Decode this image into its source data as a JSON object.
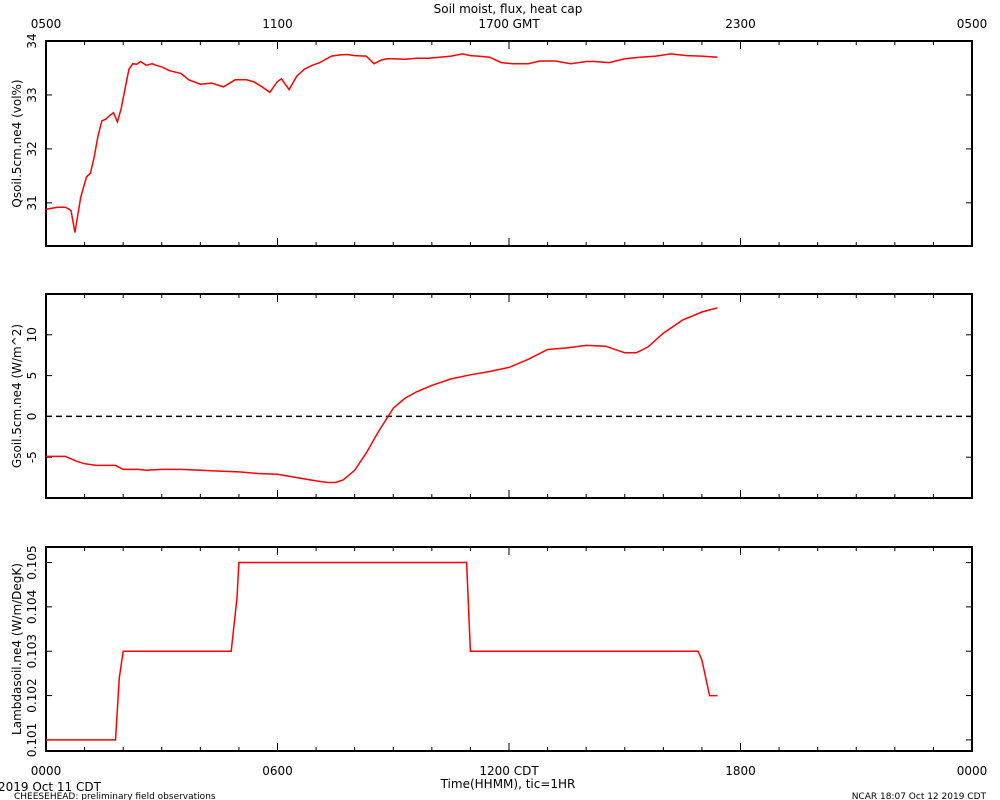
{
  "top_axis": {
    "title": "Soil moist, flux, heat cap",
    "tick_labels": [
      "0500",
      "1100",
      "1700 GMT",
      "2300",
      "0500"
    ]
  },
  "bottom_axis": {
    "tick_labels": [
      "0000",
      "0600",
      "1200 CDT",
      "1800",
      "0000"
    ],
    "title": "Time(HHMM), tic=1HR",
    "range_hours": [
      0,
      24
    ]
  },
  "footer": {
    "date_label": "2019 Oct 11 CDT",
    "left_note": "CHEESEHEAD: preliminary field observations",
    "right_note": "NCAR 18:07 Oct 12 2019 CDT"
  },
  "colors": {
    "series": "#ff0000",
    "axes": "#000000",
    "background": "#ffffff"
  },
  "chart_data": [
    {
      "type": "line",
      "ylabel": "Qsoil.5cm.ne4 (vol%)",
      "ylim": [
        30.2,
        34.0
      ],
      "ytick_values": [
        31,
        32,
        33,
        34
      ],
      "ytick_labels": [
        "31",
        "32",
        "33",
        "34"
      ],
      "xlim": [
        0,
        24
      ],
      "x": [
        0.0,
        0.3,
        0.5,
        0.6,
        0.65,
        0.75,
        0.9,
        1.05,
        1.15,
        1.25,
        1.35,
        1.45,
        1.55,
        1.65,
        1.75,
        1.85,
        1.95,
        2.1,
        2.15,
        2.25,
        2.35,
        2.45,
        2.6,
        2.75,
        2.85,
        3.0,
        3.2,
        3.5,
        3.7,
        4.0,
        4.3,
        4.6,
        4.9,
        5.2,
        5.4,
        5.6,
        5.8,
        6.0,
        6.1,
        6.3,
        6.5,
        6.7,
        6.9,
        7.1,
        7.4,
        7.6,
        7.8,
        8.0,
        8.3,
        8.5,
        8.7,
        8.85,
        9.0,
        9.3,
        9.6,
        9.9,
        10.2,
        10.5,
        10.8,
        11.0,
        11.2,
        11.5,
        11.8,
        12.1,
        12.5,
        12.8,
        13.2,
        13.6,
        14.0,
        14.2,
        14.6,
        15.0,
        15.4,
        15.8,
        16.2,
        16.6,
        17.0,
        17.4
      ],
      "y": [
        30.88,
        30.92,
        30.92,
        30.88,
        30.85,
        30.45,
        31.1,
        31.48,
        31.55,
        31.85,
        32.25,
        32.52,
        32.55,
        32.62,
        32.67,
        32.5,
        32.75,
        33.3,
        33.48,
        33.58,
        33.57,
        33.62,
        33.55,
        33.58,
        33.55,
        33.52,
        33.45,
        33.4,
        33.28,
        33.2,
        33.22,
        33.15,
        33.28,
        33.28,
        33.24,
        33.15,
        33.05,
        33.25,
        33.3,
        33.1,
        33.35,
        33.48,
        33.55,
        33.6,
        33.72,
        33.74,
        33.75,
        33.73,
        33.72,
        33.58,
        33.65,
        33.67,
        33.67,
        33.66,
        33.68,
        33.68,
        33.7,
        33.72,
        33.76,
        33.73,
        33.72,
        33.7,
        33.6,
        33.58,
        33.58,
        33.63,
        33.63,
        33.58,
        33.62,
        33.62,
        33.6,
        33.67,
        33.7,
        33.72,
        33.76,
        33.73,
        33.72,
        33.7
      ]
    },
    {
      "type": "line",
      "ylabel": "Gsoil.5cm.ne4 (W/m^2)",
      "ylim": [
        -10,
        15
      ],
      "ytick_values": [
        -5,
        0,
        5,
        10
      ],
      "ytick_labels": [
        "-5",
        "0",
        "5",
        "10"
      ],
      "reference_line": 0,
      "xlim": [
        0,
        24
      ],
      "x": [
        0.0,
        0.5,
        0.8,
        1.0,
        1.3,
        1.5,
        1.8,
        2.0,
        2.2,
        2.4,
        2.6,
        3.0,
        3.5,
        4.0,
        4.5,
        5.0,
        5.5,
        6.0,
        6.5,
        7.0,
        7.3,
        7.5,
        7.7,
        8.0,
        8.3,
        8.6,
        9.0,
        9.3,
        9.6,
        10.0,
        10.5,
        11.0,
        11.5,
        12.0,
        12.5,
        13.0,
        13.5,
        14.0,
        14.5,
        15.0,
        15.3,
        15.6,
        16.0,
        16.5,
        17.0,
        17.4
      ],
      "y": [
        -4.9,
        -4.9,
        -5.5,
        -5.8,
        -6.0,
        -6.0,
        -6.0,
        -6.5,
        -6.5,
        -6.5,
        -6.6,
        -6.5,
        -6.5,
        -6.6,
        -6.7,
        -6.8,
        -7.0,
        -7.1,
        -7.5,
        -7.9,
        -8.1,
        -8.1,
        -7.8,
        -6.6,
        -4.5,
        -2.0,
        1.0,
        2.2,
        3.0,
        3.8,
        4.6,
        5.1,
        5.5,
        6.0,
        7.0,
        8.2,
        8.4,
        8.7,
        8.6,
        7.8,
        7.8,
        8.5,
        10.2,
        11.8,
        12.8,
        13.3
      ]
    },
    {
      "type": "line",
      "ylabel": "Lambdasoil.ne4 (W/m/DegK)",
      "ylim": [
        100.75,
        105.35
      ],
      "y_display_scale": 1000,
      "ytick_values": [
        101,
        102,
        103,
        104,
        105
      ],
      "ytick_labels": [
        "0.101",
        "0.102",
        "0.103",
        "0.104",
        "0.105"
      ],
      "xlim": [
        0,
        24
      ],
      "x": [
        0.0,
        1.8,
        1.9,
        2.0,
        4.8,
        4.95,
        5.0,
        10.9,
        11.0,
        16.9,
        17.0,
        17.2,
        17.4
      ],
      "y": [
        101.0,
        101.0,
        102.4,
        103.0,
        103.0,
        104.2,
        105.0,
        105.0,
        103.0,
        103.0,
        102.8,
        102.0,
        102.0
      ]
    }
  ]
}
